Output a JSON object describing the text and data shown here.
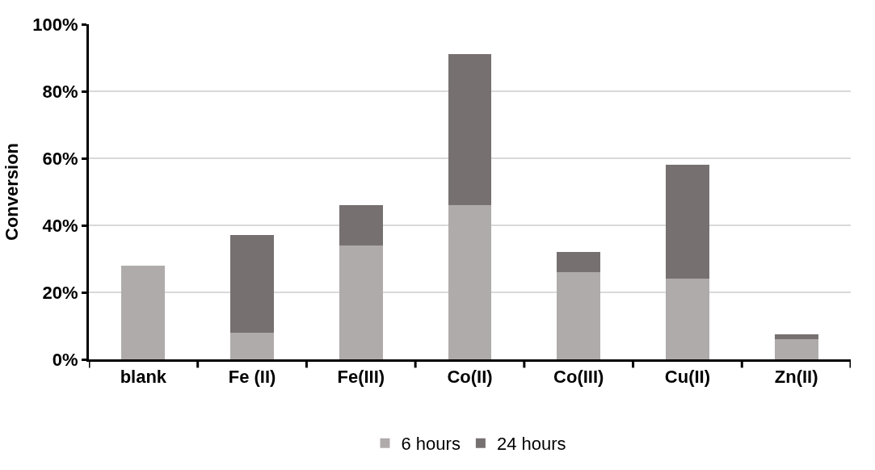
{
  "chart_data": {
    "type": "bar",
    "stacked": true,
    "ylabel": "Conversion",
    "categories": [
      "blank",
      "Fe (II)",
      "Fe(III)",
      "Co(II)",
      "Co(III)",
      "Cu(II)",
      "Zn(II)"
    ],
    "series": [
      {
        "name": "6 hours",
        "color": "#afabaa",
        "values": [
          28,
          8,
          34,
          46,
          26,
          24,
          6
        ]
      },
      {
        "name": "24 hours",
        "color": "#767170",
        "values": [
          0,
          29,
          12,
          45,
          6,
          34,
          1.5
        ]
      }
    ],
    "ylim": [
      0,
      100
    ],
    "yticks": [
      {
        "value": 0,
        "label": "0%"
      },
      {
        "value": 20,
        "label": "20%"
      },
      {
        "value": 40,
        "label": "40%"
      },
      {
        "value": 60,
        "label": "60%"
      },
      {
        "value": 80,
        "label": "80%"
      },
      {
        "value": 100,
        "label": "100%"
      }
    ],
    "grid": "y",
    "legend": "bottom"
  }
}
